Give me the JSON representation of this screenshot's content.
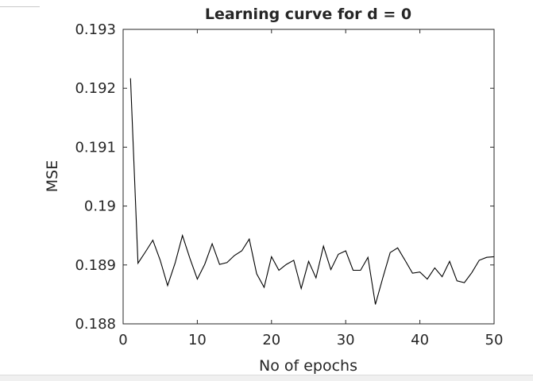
{
  "chart_data": {
    "type": "line",
    "title": "Learning curve for d = 0",
    "xlabel": "No of epochs",
    "ylabel": "MSE",
    "xlim": [
      0,
      50
    ],
    "ylim": [
      0.188,
      0.193
    ],
    "x_ticks": [
      "0",
      "10",
      "20",
      "30",
      "40",
      "50"
    ],
    "y_ticks": [
      "0.188",
      "0.189",
      "0.19",
      "0.191",
      "0.192",
      "0.193"
    ],
    "grid": false,
    "series": [
      {
        "line_color": "#000000",
        "x": [
          1,
          2,
          3,
          4,
          5,
          6,
          7,
          8,
          9,
          10,
          11,
          12,
          13,
          14,
          15,
          16,
          17,
          18,
          19,
          20,
          21,
          22,
          23,
          24,
          25,
          26,
          27,
          28,
          29,
          30,
          31,
          32,
          33,
          34,
          35,
          36,
          37,
          38,
          39,
          40,
          41,
          42,
          43,
          44,
          45,
          46,
          47,
          48,
          49,
          50
        ],
        "y": [
          0.19217,
          0.18903,
          0.18922,
          0.18942,
          0.18908,
          0.18865,
          0.18903,
          0.1895,
          0.18911,
          0.18876,
          0.18901,
          0.18936,
          0.18901,
          0.18904,
          0.18916,
          0.18924,
          0.18944,
          0.18885,
          0.18862,
          0.18914,
          0.18891,
          0.18901,
          0.18908,
          0.1886,
          0.18906,
          0.18878,
          0.18932,
          0.18892,
          0.18918,
          0.18924,
          0.18891,
          0.18891,
          0.18913,
          0.18833,
          0.18878,
          0.18921,
          0.18929,
          0.18908,
          0.18886,
          0.18888,
          0.18876,
          0.18895,
          0.1888,
          0.18906,
          0.18873,
          0.1887,
          0.18887,
          0.18908,
          0.18913,
          0.18914
        ]
      }
    ]
  }
}
